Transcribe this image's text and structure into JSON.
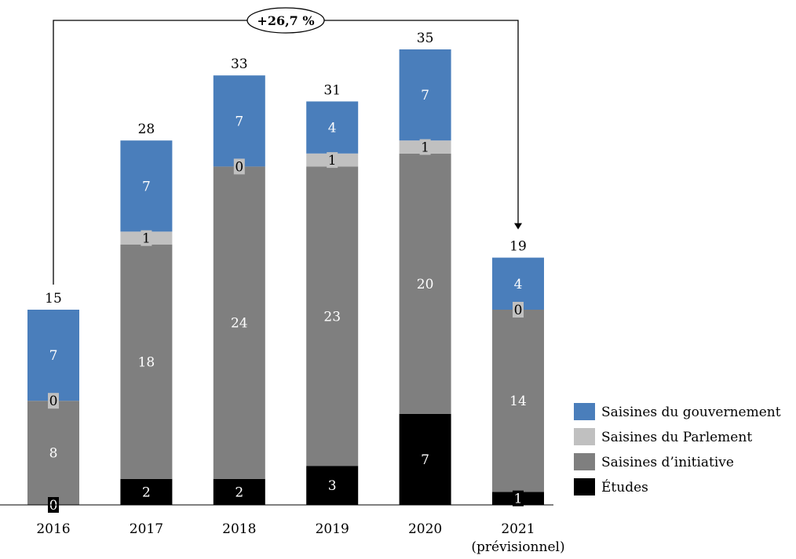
{
  "chart_data": {
    "type": "bar",
    "stacked": true,
    "categories": [
      "2016",
      "2017",
      "2018",
      "2019",
      "2020",
      "2021"
    ],
    "category_sublabels": [
      "",
      "",
      "",
      "",
      "",
      "(prévisionnel)"
    ],
    "series": [
      {
        "name": "Études",
        "color": "#000000",
        "label_color": "#ffffff",
        "values": [
          0,
          2,
          2,
          3,
          7,
          1
        ]
      },
      {
        "name": "Saisines d’initiative",
        "color": "#7f7f7f",
        "label_color": "#ffffff",
        "values": [
          8,
          18,
          24,
          23,
          20,
          14
        ]
      },
      {
        "name": "Saisines du Parlement",
        "color": "#c0c0c0",
        "label_color": "#000000",
        "values": [
          0,
          1,
          0,
          1,
          1,
          0
        ]
      },
      {
        "name": "Saisines du gouvernement",
        "color": "#4a7ebb",
        "label_color": "#ffffff",
        "values": [
          7,
          7,
          7,
          4,
          7,
          4
        ]
      }
    ],
    "totals": [
      15,
      28,
      33,
      31,
      35,
      19
    ],
    "legend_order": [
      "Saisines du gouvernement",
      "Saisines du Parlement",
      "Saisines d’initiative",
      "Études"
    ],
    "legend_position": "right-bottom",
    "grid": false,
    "annotation": {
      "text": "+26,7 %",
      "from_category": "2016",
      "to_category": "2021"
    }
  }
}
